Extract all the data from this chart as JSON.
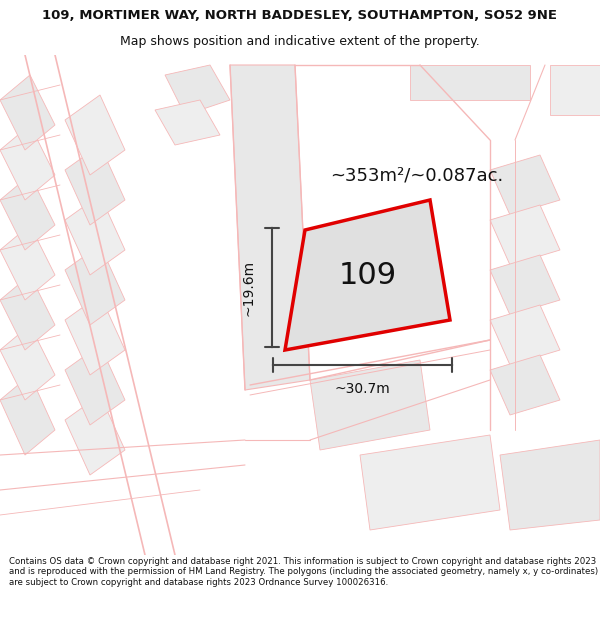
{
  "title_line1": "109, MORTIMER WAY, NORTH BADDESLEY, SOUTHAMPTON, SO52 9NE",
  "title_line2": "Map shows position and indicative extent of the property.",
  "area_text": "~353m²/~0.087ac.",
  "label_109": "109",
  "dim_width": "~30.7m",
  "dim_height": "~19.6m",
  "footer_text": "Contains OS data © Crown copyright and database right 2021. This information is subject to Crown copyright and database rights 2023 and is reproduced with the permission of HM Land Registry. The polygons (including the associated geometry, namely x, y co-ordinates) are subject to Crown copyright and database rights 2023 Ordnance Survey 100026316.",
  "bg_color": "#ffffff",
  "map_bg": "#f7f7f7",
  "road_color": "#f5b8b8",
  "block_color_a": "#e8e8e8",
  "block_color_b": "#eeeeee",
  "plot_fill": "#e0e0e0",
  "plot_outline": "#e00000",
  "dim_line_color": "#444444",
  "text_color": "#111111",
  "title_fontsize": 9.5,
  "subtitle_fontsize": 9,
  "area_fontsize": 13,
  "label_fontsize": 22,
  "dim_fontsize": 10,
  "footer_fontsize": 6.2
}
